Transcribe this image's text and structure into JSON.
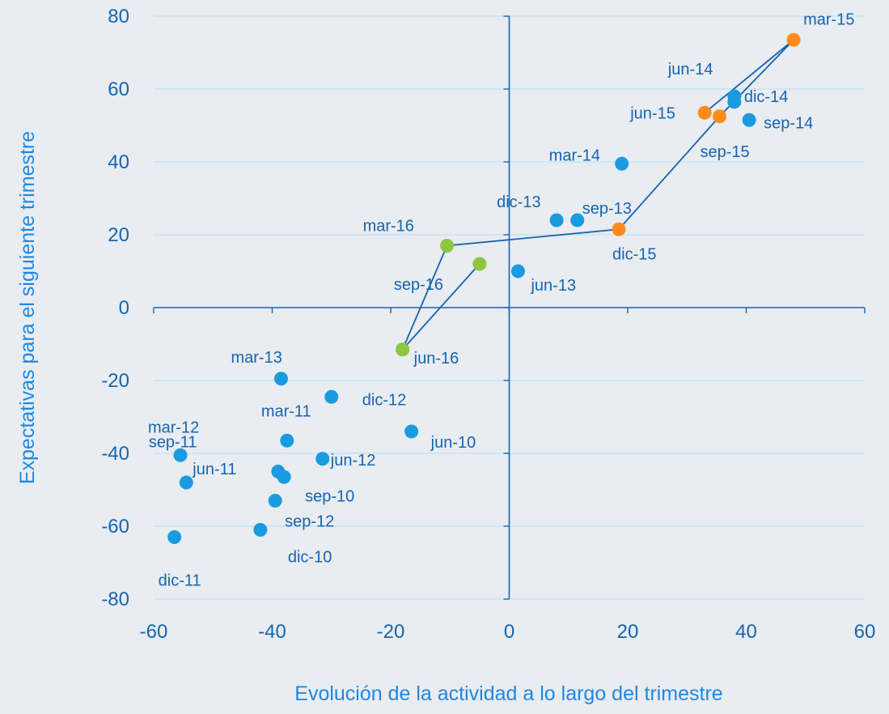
{
  "chart_data": {
    "type": "scatter",
    "xlabel": "Evolución de la actividad a lo largo del trimestre",
    "ylabel": "Expectativas para el siguiente trimestre",
    "xlim": [
      -60,
      60
    ],
    "ylim": [
      -80,
      80
    ],
    "x_ticks": [
      "-60",
      "-40",
      "-20",
      "0",
      "20",
      "40",
      "60"
    ],
    "y_ticks": [
      "80",
      "60",
      "40",
      "20",
      "0",
      "-20",
      "-40",
      "-60",
      "-80"
    ],
    "grid": "horizontal",
    "colors": {
      "series_a": "#1a9be0",
      "series_b": "#ff8c1a",
      "series_c": "#8dc63f",
      "line": "#1565b0",
      "grid": "#bfe3f7",
      "text": "#1565b0"
    },
    "series": [
      {
        "color_key": "series_a",
        "points": [
          {
            "label": "jun-10",
            "x": -16.5,
            "y": -34
          },
          {
            "label": "sep-10",
            "x": -38,
            "y": -46.5
          },
          {
            "label": "dic-10",
            "x": -42,
            "y": -61
          },
          {
            "label": "mar-11",
            "x": -37.5,
            "y": -36.5
          },
          {
            "label": "jun-11",
            "x": -54.5,
            "y": -48
          },
          {
            "label": "sep-11",
            "x": -39,
            "y": -45
          },
          {
            "label": "dic-11",
            "x": -56.5,
            "y": -63
          },
          {
            "label": "mar-12",
            "x": -55.5,
            "y": -40.5
          },
          {
            "label": "jun-12",
            "x": -31.5,
            "y": -41.5
          },
          {
            "label": "sep-12",
            "x": -39.5,
            "y": -53
          },
          {
            "label": "dic-12",
            "x": -30,
            "y": -24.5
          },
          {
            "label": "mar-13",
            "x": -38.5,
            "y": -19.5
          },
          {
            "label": "jun-13",
            "x": 1.5,
            "y": 10
          },
          {
            "label": "sep-13",
            "x": 11.5,
            "y": 24
          },
          {
            "label": "dic-13",
            "x": 8,
            "y": 24
          },
          {
            "label": "mar-14",
            "x": 19,
            "y": 39.5
          },
          {
            "label": "jun-14",
            "x": 38,
            "y": 56.5
          },
          {
            "label": "sep-14",
            "x": 40.5,
            "y": 51.5
          },
          {
            "label": "dic-14",
            "x": 38,
            "y": 58
          }
        ]
      },
      {
        "color_key": "series_b",
        "points": [
          {
            "label": "mar-15",
            "x": 48,
            "y": 73.5
          },
          {
            "label": "jun-15",
            "x": 33,
            "y": 53.5
          },
          {
            "label": "sep-15",
            "x": 35.5,
            "y": 52.5
          },
          {
            "label": "dic-15",
            "x": 18.5,
            "y": 21.5
          }
        ]
      },
      {
        "color_key": "series_c",
        "points": [
          {
            "label": "mar-16",
            "x": -10.5,
            "y": 17
          },
          {
            "label": "jun-16",
            "x": -18,
            "y": -11.5
          },
          {
            "label": "sep-16",
            "x": -5,
            "y": 12
          }
        ]
      }
    ],
    "connected_path": [
      "jun-15",
      "mar-15",
      "sep-15",
      "dic-15",
      "mar-16",
      "jun-16",
      "sep-16"
    ]
  }
}
